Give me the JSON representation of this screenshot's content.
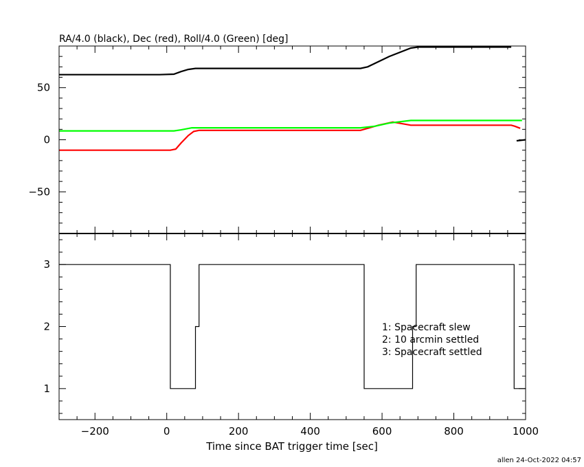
{
  "chart_data": [
    {
      "type": "line",
      "title": "RA/4.0 (black), Dec (red), Roll/4.0 (Green) [deg]",
      "xlim": [
        -300,
        1000
      ],
      "ylim": [
        -90,
        90
      ],
      "yticks": [
        -50,
        0,
        50
      ],
      "grid": false,
      "series": [
        {
          "color": "#000000",
          "x": [
            -300,
            -20,
            20,
            40,
            60,
            80,
            360,
            540,
            560,
            620,
            680,
            700,
            960
          ],
          "y": [
            62.5,
            62.5,
            63,
            65.5,
            67.5,
            68.5,
            68.5,
            68.5,
            70,
            80,
            88,
            89,
            89
          ]
        },
        {
          "color": "#ff0000",
          "x": [
            -300,
            10,
            25,
            40,
            60,
            75,
            90,
            540,
            560,
            590,
            630,
            680,
            960,
            970,
            985
          ],
          "y": [
            -10,
            -10,
            -9,
            -3,
            4,
            8,
            9,
            9,
            11,
            14,
            17,
            14,
            14,
            13,
            11
          ]
        },
        {
          "color": "#00ff00",
          "x": [
            -300,
            20,
            40,
            70,
            540,
            580,
            620,
            680,
            990
          ],
          "y": [
            8.5,
            8.5,
            9.5,
            11.5,
            11.5,
            13,
            16,
            18.5,
            18.5
          ]
        },
        {
          "color": "#000000",
          "x": [
            975,
            1000
          ],
          "y": [
            -1,
            0
          ]
        }
      ]
    },
    {
      "type": "line",
      "xlabel": "Time since BAT trigger time [sec]",
      "xlim": [
        -300,
        1000
      ],
      "ylim": [
        0.5,
        3.5
      ],
      "xticks": [
        -200,
        0,
        200,
        400,
        600,
        800,
        1000
      ],
      "xtick_labels": [
        "−200",
        "0",
        "200",
        "400",
        "600",
        "800",
        "1000"
      ],
      "yticks": [
        1,
        2,
        3
      ],
      "grid": false,
      "series": [
        {
          "color": "#000000",
          "step": true,
          "x": [
            -300,
            10,
            10,
            80,
            80,
            90,
            90,
            550,
            550,
            685,
            685,
            695,
            695,
            968,
            968,
            1000
          ],
          "y": [
            3,
            3,
            1,
            1,
            2,
            2,
            3,
            3,
            1,
            1,
            2,
            2,
            3,
            3,
            1,
            1
          ]
        }
      ],
      "annotations": [
        "1: Spacecraft slew",
        "2: 10 arcmin settled",
        "3: Spacecraft settled"
      ]
    }
  ],
  "footer": "allen 24-Oct-2022 04:57"
}
